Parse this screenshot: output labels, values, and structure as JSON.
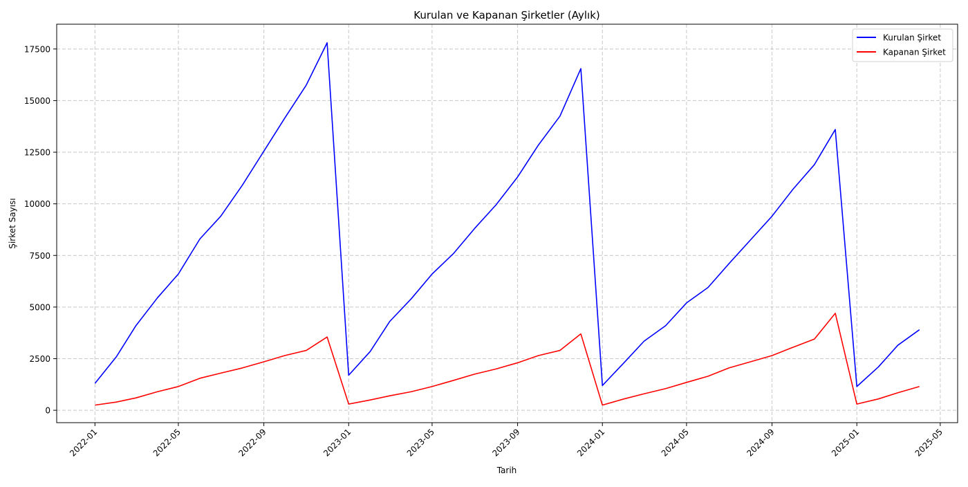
{
  "chart_data": {
    "type": "line",
    "title": "Kurulan ve Kapanan Şirketler (Aylık)",
    "xlabel": "Tarih",
    "ylabel": "Şirket Sayısı",
    "x_dates": [
      "2022-01",
      "2022-02",
      "2022-03",
      "2022-04",
      "2022-05",
      "2022-06",
      "2022-07",
      "2022-08",
      "2022-09",
      "2022-10",
      "2022-11",
      "2022-12",
      "2023-01",
      "2023-02",
      "2023-03",
      "2023-04",
      "2023-05",
      "2023-06",
      "2023-07",
      "2023-08",
      "2023-09",
      "2023-10",
      "2023-11",
      "2023-12",
      "2024-01",
      "2024-02",
      "2024-03",
      "2024-04",
      "2024-05",
      "2024-06",
      "2024-07",
      "2024-08",
      "2024-09",
      "2024-10",
      "2024-11",
      "2024-12",
      "2025-01",
      "2025-02",
      "2025-03",
      "2025-04"
    ],
    "xlim": [
      "2021-11-07",
      "2025-05-26"
    ],
    "x_ticks": [
      "2022-01",
      "2022-05",
      "2022-09",
      "2023-01",
      "2023-05",
      "2023-09",
      "2024-01",
      "2024-05",
      "2024-09",
      "2025-01",
      "2025-05"
    ],
    "ylim": [
      -600,
      18700
    ],
    "y_ticks": [
      0,
      2500,
      5000,
      7500,
      10000,
      12500,
      15000,
      17500
    ],
    "grid": true,
    "legend_position": "top-right",
    "series": [
      {
        "name": "Kurulan Şirket",
        "color": "#0000ff",
        "values": [
          1300,
          2600,
          4100,
          5450,
          6600,
          8300,
          9400,
          10900,
          12550,
          14150,
          15750,
          17800,
          1700,
          2850,
          4300,
          5400,
          6600,
          7600,
          8800,
          9950,
          11300,
          12850,
          14250,
          16550,
          1200,
          2300,
          3350,
          4100,
          5200,
          5950,
          7100,
          8250,
          9400,
          10700,
          11900,
          13600,
          1150,
          2100,
          3150,
          3900
        ]
      },
      {
        "name": "Kapanan Şirket",
        "color": "#ff0000",
        "values": [
          250,
          400,
          600,
          900,
          1150,
          1550,
          1800,
          2050,
          2350,
          2650,
          2900,
          3550,
          300,
          500,
          700,
          900,
          1150,
          1450,
          1750,
          2000,
          2300,
          2650,
          2900,
          3700,
          250,
          550,
          800,
          1050,
          1350,
          1650,
          2050,
          2350,
          2650,
          3050,
          3450,
          4700,
          300,
          550,
          850,
          1150
        ]
      }
    ]
  }
}
